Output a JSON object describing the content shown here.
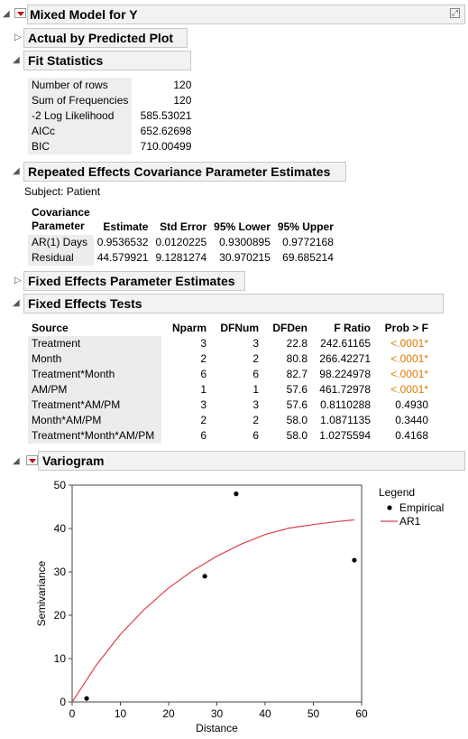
{
  "title": "Mixed Model for Y",
  "sections": {
    "actual_by_predicted": "Actual by Predicted Plot",
    "fit_statistics": "Fit Statistics",
    "repeated_effects": "Repeated Effects Covariance Parameter Estimates",
    "fixed_effects_params": "Fixed Effects Parameter Estimates",
    "fixed_effects_tests": "Fixed Effects Tests",
    "variogram": "Variogram"
  },
  "fit_statistics": [
    {
      "label": "Number of rows",
      "value": "120"
    },
    {
      "label": "Sum of Frequencies",
      "value": "120"
    },
    {
      "label": "-2 Log Likelihood",
      "value": "585.53021"
    },
    {
      "label": "AICc",
      "value": "652.62698"
    },
    {
      "label": "BIC",
      "value": "710.00499"
    }
  ],
  "repeated_effects": {
    "subject": "Subject: Patient",
    "headers": {
      "param_line1": "Covariance",
      "param_line2": "Parameter",
      "estimate": "Estimate",
      "std_error": "Std Error",
      "lower": "95% Lower",
      "upper": "95% Upper"
    },
    "rows": [
      {
        "param": "AR(1) Days",
        "estimate": "0.9536532",
        "std_error": "0.0120225",
        "lower": "0.9300895",
        "upper": "0.9772168"
      },
      {
        "param": "Residual",
        "estimate": "44.579921",
        "std_error": "9.1281274",
        "lower": "30.970215",
        "upper": "69.685214"
      }
    ]
  },
  "fixed_effects_tests": {
    "headers": {
      "source": "Source",
      "nparm": "Nparm",
      "dfnum": "DFNum",
      "dfden": "DFDen",
      "fratio": "F Ratio",
      "prob": "Prob > F"
    },
    "rows": [
      {
        "source": "Treatment",
        "nparm": "3",
        "dfnum": "3",
        "dfden": "22.8",
        "fratio": "242.61165",
        "prob": "<.0001*",
        "significant": true
      },
      {
        "source": "Month",
        "nparm": "2",
        "dfnum": "2",
        "dfden": "80.8",
        "fratio": "266.42271",
        "prob": "<.0001*",
        "significant": true
      },
      {
        "source": "Treatment*Month",
        "nparm": "6",
        "dfnum": "6",
        "dfden": "82.7",
        "fratio": "98.224978",
        "prob": "<.0001*",
        "significant": true
      },
      {
        "source": "AM/PM",
        "nparm": "1",
        "dfnum": "1",
        "dfden": "57.6",
        "fratio": "461.72978",
        "prob": "<.0001*",
        "significant": true
      },
      {
        "source": "Treatment*AM/PM",
        "nparm": "3",
        "dfnum": "3",
        "dfden": "57.6",
        "fratio": "0.8110288",
        "prob": "0.4930",
        "significant": false
      },
      {
        "source": "Month*AM/PM",
        "nparm": "2",
        "dfnum": "2",
        "dfden": "58.0",
        "fratio": "1.0871135",
        "prob": "0.3440",
        "significant": false
      },
      {
        "source": "Treatment*Month*AM/PM",
        "nparm": "6",
        "dfnum": "6",
        "dfden": "58.0",
        "fratio": "1.0275594",
        "prob": "0.4168",
        "significant": false
      }
    ]
  },
  "colors": {
    "significant": "#e07b00",
    "curve": "#e0404a",
    "points": "#000000"
  },
  "chart_data": {
    "type": "scatter",
    "xlabel": "Distance",
    "ylabel": "Semivariance",
    "xlim": [
      0,
      60
    ],
    "ylim": [
      0,
      50
    ],
    "xticks": [
      0,
      10,
      20,
      30,
      40,
      50,
      60
    ],
    "yticks": [
      0,
      10,
      20,
      30,
      40,
      50
    ],
    "legend_title": "Legend",
    "legend_position": "right",
    "series": [
      {
        "name": "Empirical",
        "kind": "points",
        "x": [
          3,
          27.5,
          34,
          58.5
        ],
        "y": [
          0.8,
          29,
          48,
          32.7
        ]
      },
      {
        "name": "AR1",
        "kind": "curve",
        "x": [
          0,
          5,
          10,
          15,
          20,
          25,
          30,
          35,
          40,
          45,
          50,
          55,
          58.5
        ],
        "y": [
          0,
          8.5,
          15.6,
          21.4,
          26.3,
          30.3,
          33.6,
          36.4,
          38.6,
          40.1,
          40.9,
          41.6,
          42.0
        ]
      }
    ]
  }
}
